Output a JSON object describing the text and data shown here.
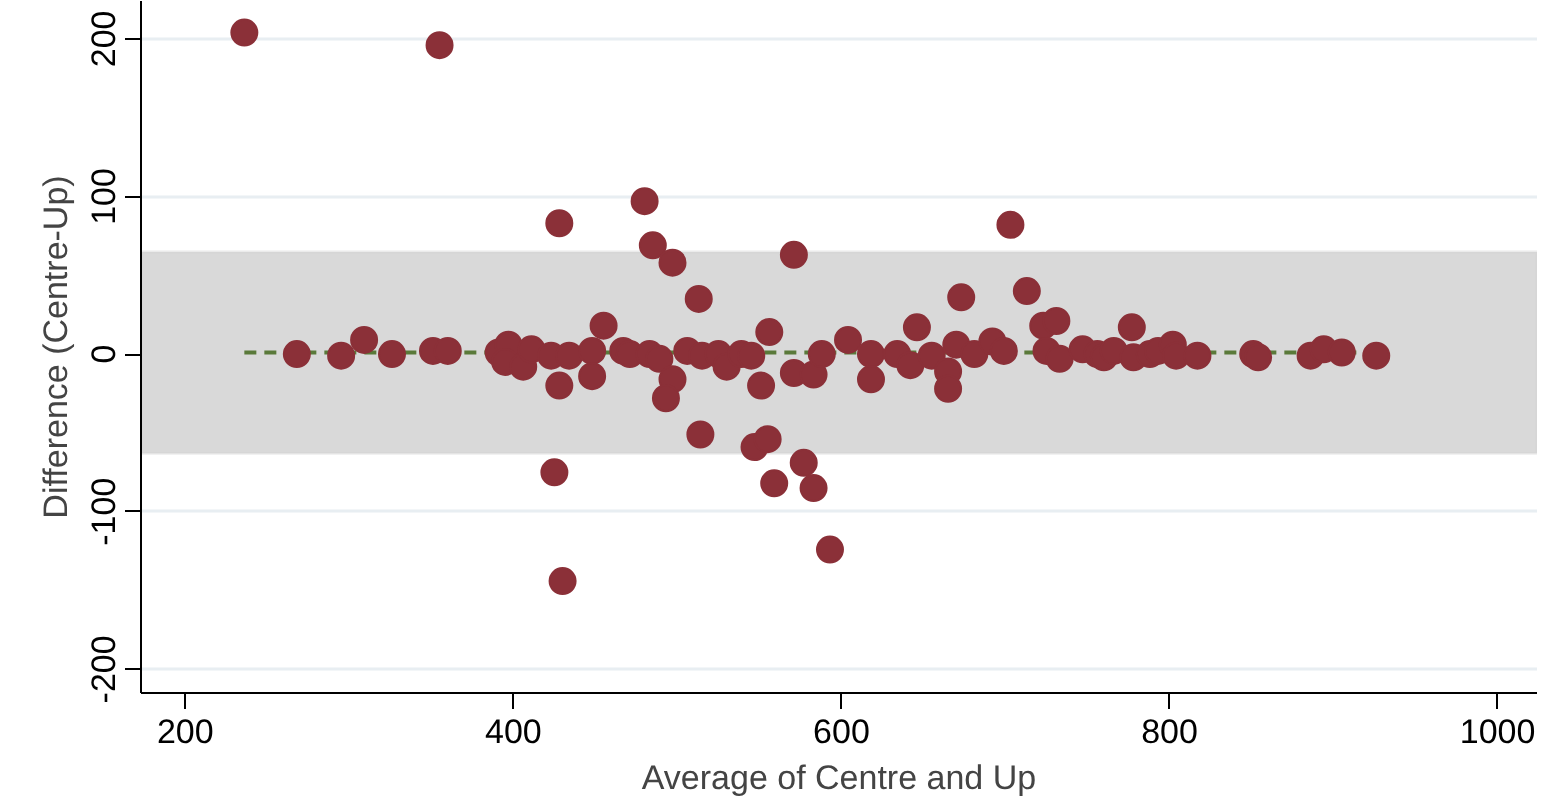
{
  "chart_data": {
    "type": "scatter",
    "xlabel": "Average of Centre and Up",
    "ylabel": "Difference (Centre-Up)",
    "xlim": [
      173,
      1024
    ],
    "ylim": [
      -215,
      224
    ],
    "xticks": [
      200,
      400,
      600,
      800,
      1000
    ],
    "yticks": [
      -200,
      -100,
      0,
      100,
      200
    ],
    "grid": "y",
    "bands": [
      {
        "axis": "y",
        "from": -63,
        "to": 65,
        "color": "#d9d9d9"
      }
    ],
    "series": [
      {
        "type": "line",
        "color": "#5a7a3a",
        "line_style": "dashed",
        "marker": "none",
        "x": [
          236,
          926
        ],
        "values": [
          1,
          1
        ]
      },
      {
        "color": "#8b3038",
        "marker": "circle",
        "x": [
          236,
          355,
          428,
          480,
          485,
          497,
          268,
          295,
          309,
          326,
          351,
          360,
          391,
          397,
          395,
          406,
          411,
          428,
          425,
          430,
          423,
          434,
          448,
          455,
          448,
          467,
          471,
          483,
          489,
          497,
          493,
          513,
          514,
          506,
          515,
          525,
          530,
          539,
          545,
          556,
          551,
          571,
          571,
          583,
          588,
          547,
          555,
          559,
          577,
          583,
          593,
          604,
          618,
          618,
          634,
          642,
          646,
          655,
          670,
          665,
          665,
          673,
          681,
          692,
          699,
          703,
          713,
          723,
          731,
          725,
          733,
          747,
          756,
          760,
          766,
          777,
          778,
          788,
          793,
          802,
          804,
          817,
          851,
          854,
          886,
          894,
          905,
          926
        ],
        "values": [
          204,
          196,
          83,
          97,
          69,
          58,
          0,
          -1,
          9,
          0,
          2,
          2,
          1,
          6,
          -5,
          -8,
          3,
          -20,
          -75,
          -144,
          -1,
          -1,
          2,
          18,
          -14,
          2,
          0,
          0,
          -3,
          -16,
          -28,
          35,
          -51,
          2,
          -1,
          0,
          -8,
          0,
          -1,
          14,
          -20,
          63,
          -12,
          -13,
          0,
          -59,
          -54,
          -82,
          -69,
          -85,
          -124,
          9,
          -16,
          0,
          0,
          -7,
          17,
          -1,
          6,
          -11,
          -22,
          36,
          0,
          8,
          2,
          82,
          40,
          18,
          21,
          2,
          -3,
          3,
          0,
          -2,
          2,
          17,
          -2,
          0,
          2,
          6,
          -1,
          -1,
          0,
          -2,
          -1,
          3,
          1,
          -1
        ]
      }
    ]
  }
}
